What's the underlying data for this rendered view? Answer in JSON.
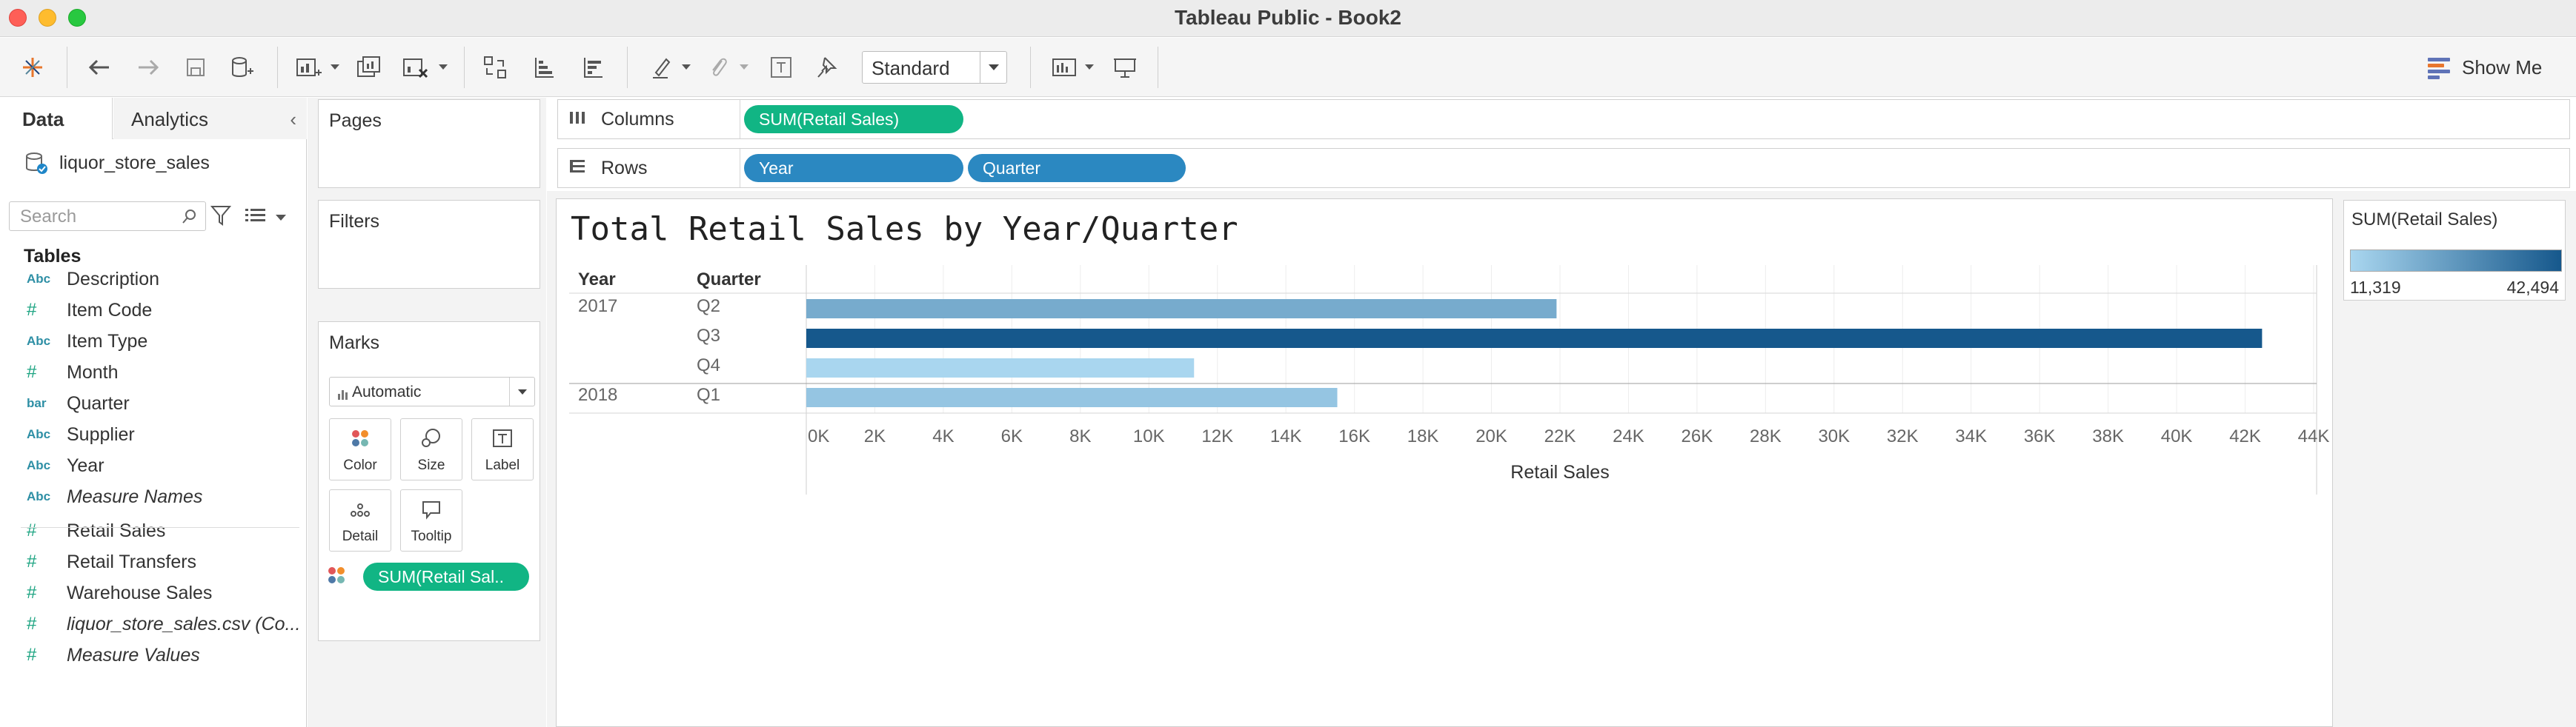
{
  "window": {
    "title": "Tableau Public - Book2"
  },
  "toolbar": {
    "fit_select": "Standard",
    "show_me": "Show Me"
  },
  "left_pane": {
    "tabs": {
      "data": "Data",
      "analytics": "Analytics"
    },
    "datasource": "liquor_store_sales",
    "search_placeholder": "Search",
    "tables_heading": "Tables",
    "fields": [
      {
        "type": "Abc",
        "name": "Description"
      },
      {
        "type": "#",
        "name": "Item Code"
      },
      {
        "type": "Abc",
        "name": "Item Type"
      },
      {
        "type": "#",
        "name": "Month"
      },
      {
        "type": "bar",
        "name": "Quarter"
      },
      {
        "type": "Abc",
        "name": "Supplier"
      },
      {
        "type": "Abc",
        "name": "Year"
      },
      {
        "type": "Abc",
        "name": "Measure Names"
      },
      {
        "type": "#",
        "name": "Retail Sales"
      },
      {
        "type": "#",
        "name": "Retail Transfers"
      },
      {
        "type": "#",
        "name": "Warehouse Sales"
      },
      {
        "type": "#",
        "name": "liquor_store_sales.csv (Co..."
      },
      {
        "type": "#",
        "name": "Measure Values"
      }
    ]
  },
  "cards": {
    "pages": "Pages",
    "filters": "Filters",
    "marks": "Marks",
    "mark_type": "Automatic",
    "buttons": {
      "color": "Color",
      "size": "Size",
      "label": "Label",
      "detail": "Detail",
      "tooltip": "Tooltip"
    },
    "color_pill": "SUM(Retail Sal.."
  },
  "shelves": {
    "columns_label": "Columns",
    "rows_label": "Rows",
    "columns_pill": "SUM(Retail Sales)",
    "rows_pills": [
      "Year",
      "Quarter"
    ]
  },
  "legend": {
    "title": "SUM(Retail Sales)",
    "min": "11,319",
    "max": "42,494",
    "color_min": "#a9d6ef",
    "color_max": "#16588c"
  },
  "chart_data": {
    "type": "bar",
    "orientation": "horizontal",
    "title": "Total Retail Sales by Year/Quarter",
    "row_headers": [
      "Year",
      "Quarter"
    ],
    "xlabel": "Retail Sales",
    "xlim": [
      0,
      44000
    ],
    "x_ticks": [
      "0K",
      "2K",
      "4K",
      "6K",
      "8K",
      "10K",
      "12K",
      "14K",
      "16K",
      "18K",
      "20K",
      "22K",
      "24K",
      "26K",
      "28K",
      "30K",
      "32K",
      "34K",
      "36K",
      "38K",
      "40K",
      "42K",
      "44K"
    ],
    "rows": [
      {
        "year": "2017",
        "quarter": "Q2",
        "value": 21900
      },
      {
        "year": "",
        "quarter": "Q3",
        "value": 42494
      },
      {
        "year": "",
        "quarter": "Q4",
        "value": 11319
      },
      {
        "year": "2018",
        "quarter": "Q1",
        "value": 15500
      }
    ],
    "grid": true
  }
}
